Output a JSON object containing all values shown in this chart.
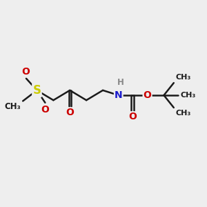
{
  "bg_color": "#eeeeee",
  "bond_color": "#1a1a1a",
  "bond_width": 1.8,
  "S_color": "#cccc00",
  "O_color": "#cc0000",
  "N_color": "#1a1acc",
  "H_color": "#888888",
  "C_color": "#1a1a1a",
  "chain_y": 5.5,
  "xlim": [
    0,
    12
  ],
  "ylim": [
    1,
    9
  ]
}
